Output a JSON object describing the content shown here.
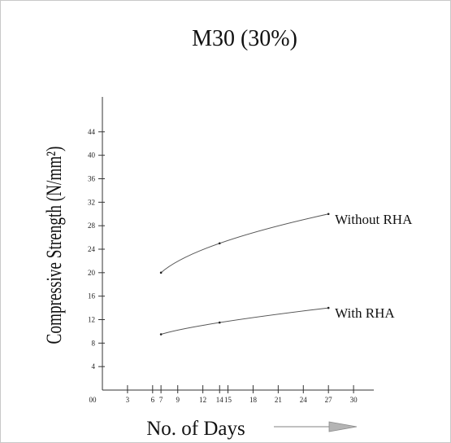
{
  "chart_data": {
    "type": "line",
    "title": "M30 (30%)",
    "xlabel": "No. of Days",
    "ylabel": "Compressive Strength (N/mm²)",
    "x_ticks": [
      0,
      3,
      6,
      7,
      9,
      12,
      14,
      15,
      18,
      21,
      24,
      27,
      30
    ],
    "x_tick_labels": [
      "00",
      "3",
      "6",
      "7",
      "9",
      "12",
      "14",
      "15",
      "18",
      "21",
      "24",
      "27",
      "30"
    ],
    "y_ticks": [
      4,
      8,
      12,
      16,
      20,
      24,
      28,
      32,
      36,
      40,
      44
    ],
    "xlim": [
      0,
      33
    ],
    "ylim": [
      0,
      48
    ],
    "series": [
      {
        "name": "Without RHA",
        "x": [
          7,
          14,
          27
        ],
        "y": [
          20,
          25,
          30
        ]
      },
      {
        "name": "With RHA",
        "x": [
          7,
          14,
          27
        ],
        "y": [
          9.5,
          11.5,
          14
        ]
      }
    ]
  }
}
